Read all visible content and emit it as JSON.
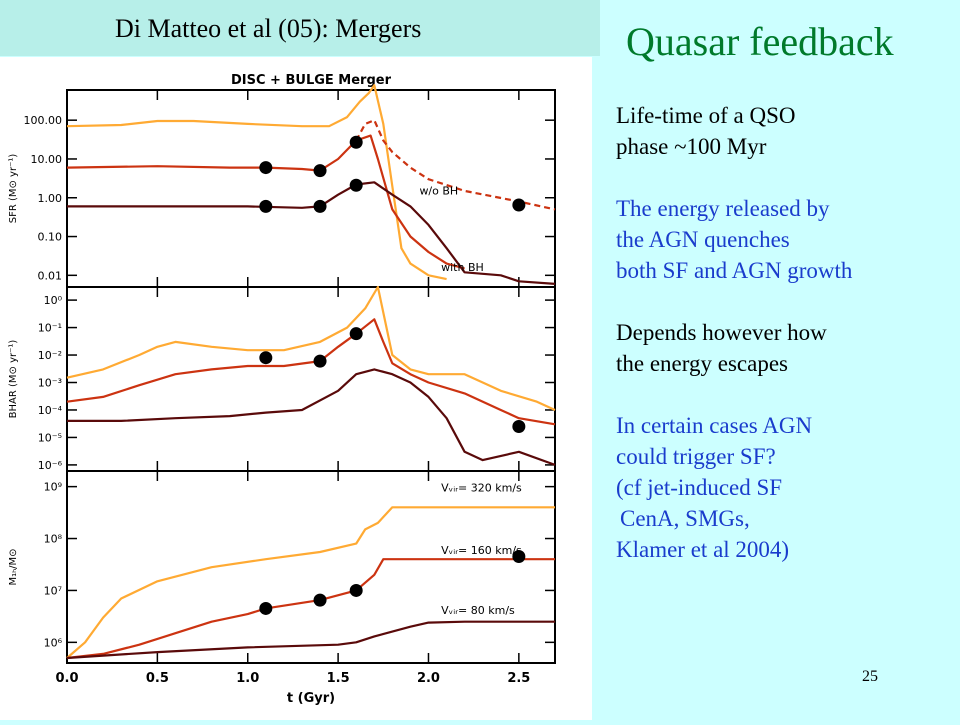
{
  "ref_title": "Di Matteo et al (05):  Mergers",
  "slide_title": "Quasar feedback",
  "bullets": [
    {
      "text": "Life-time of a QSO",
      "color": "black"
    },
    {
      "text": "phase ~100 Myr",
      "color": "black"
    },
    {
      "text": "",
      "color": "black"
    },
    {
      "text": "The energy released by",
      "color": "blue"
    },
    {
      "text": "the AGN quenches",
      "color": "blue"
    },
    {
      "text": "both SF and AGN growth",
      "color": "blue"
    },
    {
      "text": "",
      "color": "black"
    },
    {
      "text": "Depends however how",
      "color": "black"
    },
    {
      "text": "the energy escapes",
      "color": "black"
    },
    {
      "text": "",
      "color": "black"
    },
    {
      "text": "In certain cases AGN",
      "color": "blue"
    },
    {
      "text": "could trigger SF?",
      "color": "blue"
    },
    {
      "text": "(cf jet-induced SF",
      "color": "blue"
    },
    {
      "text": " CenA, SMGs,",
      "color": "blue"
    },
    {
      "text": "Klamer et al 2004)",
      "color": "blue"
    }
  ],
  "page_number": "25",
  "colors": {
    "orange": "#ffaa33",
    "red": "#cc3311",
    "darkred": "#5a0a0a",
    "title_green": "#007a2b",
    "text_blue": "#1a3ccc"
  },
  "chart_data": {
    "type": "line",
    "title": "DISC + BULGE Merger",
    "xlabel": "t (Gyr)",
    "x_ticks": [
      "0.0",
      "0.5",
      "1.0",
      "1.5",
      "2.0",
      "2.5"
    ],
    "xlim": [
      0,
      2.7
    ],
    "panels": [
      {
        "id": "sfr",
        "ylabel": "SFR (M⊙ yr⁻¹)",
        "log": true,
        "ylim": [
          0.005,
          600
        ],
        "y_ticks": [
          {
            "v": 100,
            "label": "100.00"
          },
          {
            "v": 10,
            "label": "10.00"
          },
          {
            "v": 1,
            "label": "1.00"
          },
          {
            "v": 0.1,
            "label": "0.10"
          },
          {
            "v": 0.01,
            "label": "0.01"
          }
        ],
        "annotations": [
          {
            "text": "w/o BH",
            "x": 1.95,
            "y": 1.2
          },
          {
            "text": "with BH",
            "x": 2.07,
            "y": 0.013
          }
        ],
        "series": [
          {
            "color": "orange",
            "dash": false,
            "points": [
              [
                0,
                70
              ],
              [
                0.3,
                75
              ],
              [
                0.5,
                95
              ],
              [
                0.7,
                95
              ],
              [
                1.0,
                80
              ],
              [
                1.3,
                70
              ],
              [
                1.45,
                70
              ],
              [
                1.55,
                120
              ],
              [
                1.62,
                300
              ],
              [
                1.67,
                500
              ],
              [
                1.7,
                800
              ],
              [
                1.75,
                80
              ],
              [
                1.8,
                2
              ],
              [
                1.85,
                0.05
              ],
              [
                1.9,
                0.02
              ],
              [
                2.0,
                0.01
              ],
              [
                2.1,
                0.008
              ]
            ]
          },
          {
            "color": "red",
            "dash": false,
            "points": [
              [
                0,
                6
              ],
              [
                0.5,
                6.5
              ],
              [
                0.9,
                6
              ],
              [
                1.1,
                6
              ],
              [
                1.3,
                5.5
              ],
              [
                1.4,
                5
              ],
              [
                1.5,
                10
              ],
              [
                1.6,
                30
              ],
              [
                1.68,
                40
              ],
              [
                1.72,
                10
              ],
              [
                1.8,
                0.5
              ],
              [
                1.9,
                0.1
              ],
              [
                2.0,
                0.04
              ],
              [
                2.1,
                0.02
              ],
              [
                2.2,
                0.015
              ]
            ]
          },
          {
            "color": "red",
            "dash": true,
            "points": [
              [
                1.6,
                30
              ],
              [
                1.65,
                80
              ],
              [
                1.7,
                100
              ],
              [
                1.75,
                30
              ],
              [
                1.8,
                15
              ],
              [
                1.9,
                6
              ],
              [
                2.0,
                3
              ],
              [
                2.2,
                1.5
              ],
              [
                2.5,
                0.8
              ],
              [
                2.7,
                0.5
              ]
            ]
          },
          {
            "color": "darkred",
            "dash": false,
            "points": [
              [
                0,
                0.6
              ],
              [
                0.5,
                0.6
              ],
              [
                1.0,
                0.6
              ],
              [
                1.3,
                0.55
              ],
              [
                1.4,
                0.6
              ],
              [
                1.5,
                1.2
              ],
              [
                1.6,
                2.2
              ],
              [
                1.7,
                2.5
              ],
              [
                1.8,
                1.2
              ],
              [
                1.9,
                0.6
              ],
              [
                2.0,
                0.2
              ],
              [
                2.1,
                0.05
              ],
              [
                2.2,
                0.012
              ],
              [
                2.4,
                0.01
              ],
              [
                2.5,
                0.007
              ],
              [
                2.7,
                0.006
              ]
            ]
          }
        ],
        "markers": [
          [
            1.1,
            6
          ],
          [
            1.4,
            5
          ],
          [
            1.6,
            27
          ],
          [
            1.1,
            0.6
          ],
          [
            1.4,
            0.6
          ],
          [
            1.6,
            2.1
          ],
          [
            2.5,
            0.65
          ]
        ]
      },
      {
        "id": "bhar",
        "ylabel": "BHAR (M⊙ yr⁻¹)",
        "log": true,
        "ylim": [
          6e-07,
          3
        ],
        "y_ticks": [
          {
            "v": 1,
            "label": "10⁰"
          },
          {
            "v": 0.1,
            "label": "10⁻¹"
          },
          {
            "v": 0.01,
            "label": "10⁻²"
          },
          {
            "v": 0.001,
            "label": "10⁻³"
          },
          {
            "v": 0.0001,
            "label": "10⁻⁴"
          },
          {
            "v": 1e-05,
            "label": "10⁻⁵"
          },
          {
            "v": 1e-06,
            "label": "10⁻⁶"
          }
        ],
        "annotations": [],
        "series": [
          {
            "color": "orange",
            "dash": false,
            "points": [
              [
                0,
                0.0015
              ],
              [
                0.2,
                0.003
              ],
              [
                0.4,
                0.01
              ],
              [
                0.5,
                0.02
              ],
              [
                0.6,
                0.03
              ],
              [
                0.8,
                0.02
              ],
              [
                1.0,
                0.015
              ],
              [
                1.2,
                0.015
              ],
              [
                1.4,
                0.03
              ],
              [
                1.55,
                0.1
              ],
              [
                1.65,
                0.5
              ],
              [
                1.72,
                3
              ],
              [
                1.8,
                0.01
              ],
              [
                1.9,
                0.003
              ],
              [
                2.0,
                0.002
              ],
              [
                2.2,
                0.002
              ],
              [
                2.4,
                0.0005
              ],
              [
                2.6,
                0.0002
              ],
              [
                2.7,
                0.0001
              ]
            ]
          },
          {
            "color": "red",
            "dash": false,
            "points": [
              [
                0,
                0.0002
              ],
              [
                0.2,
                0.0003
              ],
              [
                0.4,
                0.0008
              ],
              [
                0.6,
                0.002
              ],
              [
                0.8,
                0.003
              ],
              [
                1.0,
                0.004
              ],
              [
                1.2,
                0.004
              ],
              [
                1.4,
                0.006
              ],
              [
                1.5,
                0.02
              ],
              [
                1.6,
                0.06
              ],
              [
                1.7,
                0.2
              ],
              [
                1.75,
                0.03
              ],
              [
                1.8,
                0.005
              ],
              [
                1.9,
                0.002
              ],
              [
                2.0,
                0.001
              ],
              [
                2.2,
                0.0004
              ],
              [
                2.4,
                0.0001
              ],
              [
                2.5,
                5e-05
              ],
              [
                2.7,
                3e-05
              ]
            ]
          },
          {
            "color": "darkred",
            "dash": false,
            "points": [
              [
                0,
                4e-05
              ],
              [
                0.3,
                4e-05
              ],
              [
                0.6,
                5e-05
              ],
              [
                0.9,
                6e-05
              ],
              [
                1.1,
                8e-05
              ],
              [
                1.3,
                0.0001
              ],
              [
                1.5,
                0.0005
              ],
              [
                1.6,
                0.002
              ],
              [
                1.7,
                0.003
              ],
              [
                1.8,
                0.002
              ],
              [
                1.9,
                0.001
              ],
              [
                2.0,
                0.0003
              ],
              [
                2.1,
                5e-05
              ],
              [
                2.2,
                3e-06
              ],
              [
                2.3,
                1.5e-06
              ],
              [
                2.5,
                3e-06
              ],
              [
                2.7,
                1e-06
              ]
            ]
          }
        ],
        "markers": [
          [
            1.1,
            0.008
          ],
          [
            1.4,
            0.006
          ],
          [
            1.6,
            0.06
          ],
          [
            2.5,
            2.5e-05
          ]
        ]
      },
      {
        "id": "mbh",
        "ylabel": "M₁ₕ/M⊙",
        "log": true,
        "ylim": [
          400000,
          2000000000
        ],
        "y_ticks": [
          {
            "v": 1000000000,
            "label": "10⁹"
          },
          {
            "v": 100000000,
            "label": "10⁸"
          },
          {
            "v": 10000000,
            "label": "10⁷"
          },
          {
            "v": 1000000,
            "label": "10⁶"
          }
        ],
        "annotations": [
          {
            "text": "Vᵥᵢᵣ= 320 km/s",
            "x": 2.07,
            "y": 800000000
          },
          {
            "text": "Vᵥᵢᵣ= 160 km/s",
            "x": 2.07,
            "y": 50000000
          },
          {
            "text": "Vᵥᵢᵣ=  80 km/s",
            "x": 2.07,
            "y": 3500000
          }
        ],
        "series": [
          {
            "color": "orange",
            "dash": false,
            "points": [
              [
                0,
                500000
              ],
              [
                0.1,
                1000000
              ],
              [
                0.2,
                3000000
              ],
              [
                0.3,
                7000000
              ],
              [
                0.5,
                15000000
              ],
              [
                0.8,
                28000000
              ],
              [
                1.1,
                40000000
              ],
              [
                1.4,
                55000000
              ],
              [
                1.6,
                80000000
              ],
              [
                1.65,
                150000000
              ],
              [
                1.72,
                200000000
              ],
              [
                1.8,
                400000000
              ],
              [
                2.0,
                400000000
              ],
              [
                2.7,
                400000000
              ]
            ]
          },
          {
            "color": "red",
            "dash": false,
            "points": [
              [
                0,
                500000
              ],
              [
                0.2,
                600000
              ],
              [
                0.4,
                900000
              ],
              [
                0.6,
                1500000
              ],
              [
                0.8,
                2500000
              ],
              [
                1.0,
                3500000
              ],
              [
                1.1,
                4500000
              ],
              [
                1.4,
                6500000
              ],
              [
                1.6,
                10000000
              ],
              [
                1.7,
                20000000
              ],
              [
                1.75,
                40000000
              ],
              [
                2.0,
                40000000
              ],
              [
                2.7,
                40000000
              ]
            ]
          },
          {
            "color": "darkred",
            "dash": false,
            "points": [
              [
                0,
                500000
              ],
              [
                0.5,
                650000
              ],
              [
                1.0,
                800000
              ],
              [
                1.5,
                900000
              ],
              [
                1.6,
                1000000
              ],
              [
                1.7,
                1300000
              ],
              [
                1.9,
                2000000
              ],
              [
                2.0,
                2400000
              ],
              [
                2.2,
                2500000
              ],
              [
                2.7,
                2500000
              ]
            ]
          }
        ],
        "markers": [
          [
            1.1,
            4500000
          ],
          [
            1.4,
            6500000
          ],
          [
            1.6,
            10000000
          ],
          [
            2.5,
            45000000
          ]
        ]
      }
    ]
  }
}
